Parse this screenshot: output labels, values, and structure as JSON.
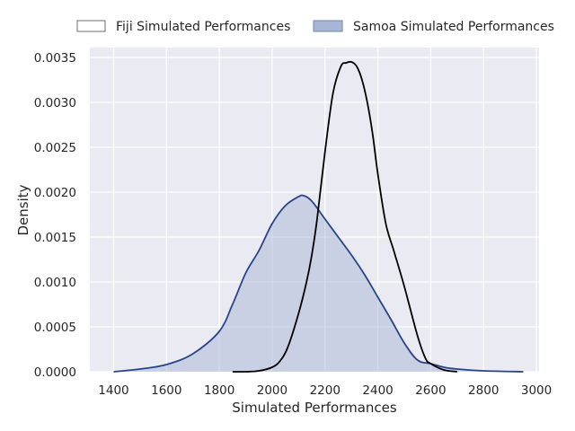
{
  "chart_data": {
    "type": "area",
    "title": "",
    "xlabel": "Simulated Performances",
    "ylabel": "Density",
    "xlim": [
      1310,
      3010
    ],
    "ylim": [
      0,
      0.0035
    ],
    "xticks": [
      1400,
      1600,
      1800,
      2000,
      2200,
      2400,
      2600,
      2800,
      3000
    ],
    "yticks": [
      "0.0000",
      "0.0005",
      "0.0010",
      "0.0015",
      "0.0020",
      "0.0025",
      "0.0030",
      "0.0035"
    ],
    "grid": true,
    "legend_position": "top",
    "series": [
      {
        "name": "Fiji Simulated Performances",
        "style": "line",
        "color": "#000000",
        "fill": "none",
        "x": [
          1850,
          1900,
          1950,
          2000,
          2030,
          2060,
          2100,
          2130,
          2150,
          2170,
          2200,
          2230,
          2260,
          2280,
          2300,
          2320,
          2340,
          2360,
          2380,
          2400,
          2430,
          2460,
          2500,
          2550,
          2580,
          2600,
          2650,
          2700
        ],
        "y": [
          0.0,
          0.0,
          1e-05,
          5e-05,
          0.00012,
          0.00028,
          0.00065,
          0.001,
          0.0013,
          0.0017,
          0.00245,
          0.0031,
          0.0034,
          0.00344,
          0.00345,
          0.0034,
          0.00325,
          0.003,
          0.00265,
          0.0022,
          0.00165,
          0.00135,
          0.00095,
          0.0004,
          0.00015,
          9e-05,
          2e-05,
          0.0
        ]
      },
      {
        "name": "Samoa Simulated Performances",
        "style": "area",
        "color": "#2a448a",
        "fill": "#a7b6d4",
        "x": [
          1400,
          1500,
          1600,
          1700,
          1800,
          1850,
          1900,
          1950,
          2000,
          2050,
          2100,
          2120,
          2150,
          2200,
          2250,
          2300,
          2350,
          2400,
          2450,
          2500,
          2550,
          2600,
          2650,
          2700,
          2800,
          2950
        ],
        "y": [
          0.0,
          3e-05,
          8e-05,
          0.0002,
          0.00045,
          0.00075,
          0.0011,
          0.00135,
          0.00165,
          0.00185,
          0.00195,
          0.00196,
          0.0019,
          0.0017,
          0.0015,
          0.0013,
          0.00108,
          0.00083,
          0.00058,
          0.00032,
          0.00013,
          9e-05,
          5e-05,
          3e-05,
          1e-05,
          0.0
        ]
      }
    ]
  }
}
